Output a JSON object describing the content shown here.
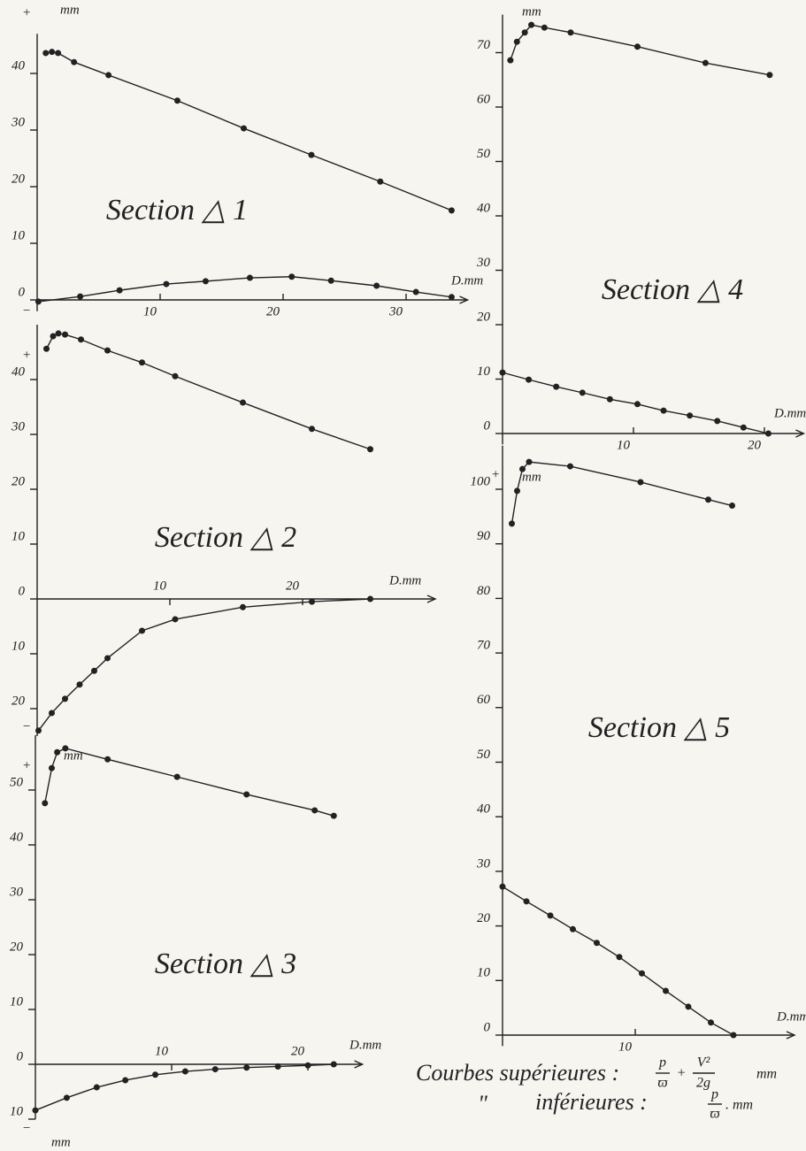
{
  "chart_data": [
    {
      "type": "line",
      "title": "Section △ 1",
      "x_label": "D.mm",
      "y_unit": "mm",
      "plus_sign": "+",
      "minus_sign": "−",
      "xlim": [
        0,
        35
      ],
      "ylim": [
        -2,
        47
      ],
      "xticks": [
        10,
        20,
        30
      ],
      "yticks": [
        0,
        10,
        20,
        30,
        40
      ],
      "series": [
        {
          "color": "#222",
          "x": [
            0.7,
            1.2,
            1.7,
            3.0,
            5.8,
            11.4,
            16.8,
            22.3,
            27.9,
            33.7
          ],
          "values": [
            43.6,
            43.8,
            43.6,
            42.0,
            39.7,
            35.2,
            30.3,
            25.6,
            20.9,
            15.8
          ]
        },
        {
          "color": "#222",
          "x": [
            0.1,
            3.5,
            6.7,
            10.5,
            13.7,
            17.3,
            20.7,
            23.9,
            27.6,
            30.8,
            33.7
          ],
          "values": [
            -0.3,
            0.6,
            1.7,
            2.8,
            3.3,
            3.9,
            4.1,
            3.4,
            2.5,
            1.4,
            0.5
          ]
        }
      ]
    },
    {
      "type": "line",
      "title": "Section △ 2",
      "x_label": "D.mm",
      "plus_sign": "+",
      "minus_sign": "−",
      "xlim": [
        0,
        30
      ],
      "ylim": [
        -25,
        50
      ],
      "xticks": [
        10,
        20
      ],
      "yticks": [
        {
          "value": -20,
          "label": "20"
        },
        {
          "value": -10,
          "label": "10"
        },
        0,
        10,
        20,
        30,
        40
      ],
      "series": [
        {
          "color": "#222",
          "x": [
            0.7,
            1.2,
            1.6,
            2.1,
            3.3,
            5.3,
            7.9,
            10.4,
            15.5,
            20.7,
            25.1
          ],
          "values": [
            45.6,
            47.9,
            48.4,
            48.2,
            47.3,
            45.3,
            43.1,
            40.6,
            35.8,
            31.0,
            27.3
          ]
        },
        {
          "color": "#222",
          "x": [
            0.1,
            1.1,
            2.1,
            3.2,
            4.3,
            5.3,
            7.9,
            10.4,
            15.5,
            20.7,
            25.1
          ],
          "values": [
            -24.0,
            -20.8,
            -18.2,
            -15.6,
            -13.1,
            -10.8,
            -5.8,
            -3.7,
            -1.5,
            -0.5,
            0
          ]
        }
      ]
    },
    {
      "type": "line",
      "title": "Section △ 3",
      "x_label": "D.mm",
      "y_unit": "mm",
      "y_unit_bottom": "mm",
      "plus_sign": "+",
      "minus_sign": "−",
      "xlim": [
        0,
        24
      ],
      "ylim": [
        -10,
        60
      ],
      "xticks": [
        10,
        20
      ],
      "yticks": [
        {
          "value": -10,
          "label": "10"
        },
        0,
        10,
        20,
        30,
        40,
        50
      ],
      "series": [
        {
          "color": "#222",
          "x": [
            0.7,
            1.2,
            1.6,
            2.2,
            5.3,
            10.4,
            15.5,
            20.5,
            21.9
          ],
          "values": [
            47.6,
            54.0,
            56.9,
            57.6,
            55.6,
            52.4,
            49.2,
            46.3,
            45.3
          ]
        },
        {
          "color": "#222",
          "x": [
            0,
            2.3,
            4.5,
            6.6,
            8.8,
            11.0,
            13.2,
            15.5,
            17.8,
            20.0,
            21.9
          ],
          "values": [
            -8.4,
            -6.1,
            -4.2,
            -2.9,
            -1.9,
            -1.3,
            -0.9,
            -0.6,
            -0.4,
            -0.2,
            0
          ]
        }
      ]
    },
    {
      "type": "line",
      "title": "Section △ 4",
      "x_label": "D.mm",
      "y_unit": "mm",
      "xlim": [
        0,
        23
      ],
      "ylim": [
        -2,
        77
      ],
      "xticks": [
        10,
        20
      ],
      "yticks": [
        0,
        10,
        20,
        30,
        40,
        50,
        60,
        70
      ],
      "series": [
        {
          "color": "#222",
          "x": [
            0.6,
            1.1,
            1.7,
            2.2,
            3.2,
            5.2,
            10.3,
            15.5,
            20.4
          ],
          "values": [
            68.6,
            72.0,
            73.7,
            75.1,
            74.6,
            73.7,
            71.1,
            68.1,
            65.9
          ]
        },
        {
          "color": "#222",
          "x": [
            0,
            2,
            4.1,
            6.1,
            8.2,
            10.3,
            12.3,
            14.3,
            16.4,
            18.4,
            20.3
          ],
          "values": [
            11.2,
            9.9,
            8.6,
            7.5,
            6.3,
            5.4,
            4.2,
            3.3,
            2.3,
            1.1,
            0
          ]
        }
      ]
    },
    {
      "type": "line",
      "title": "Section △ 5",
      "x_label": "D.mm",
      "y_unit": "mm",
      "plus_sign": "+",
      "xlim": [
        0,
        22
      ],
      "ylim": [
        -2,
        108
      ],
      "xticks": [
        10
      ],
      "yticks": [
        0,
        10,
        20,
        30,
        40,
        50,
        60,
        70,
        80,
        90,
        100
      ],
      "series": [
        {
          "color": "#222",
          "x": [
            0.7,
            1.1,
            1.5,
            2.0,
            5.1,
            10.4,
            15.5,
            17.3
          ],
          "values": [
            93.7,
            99.7,
            103.7,
            105.0,
            104.2,
            101.3,
            98.1,
            97.0
          ]
        },
        {
          "color": "#222",
          "x": [
            0,
            1.8,
            3.6,
            5.3,
            7.1,
            8.8,
            10.5,
            12.3,
            14.0,
            15.7,
            17.4
          ],
          "values": [
            27.2,
            24.5,
            21.9,
            19.4,
            16.9,
            14.3,
            11.3,
            8.1,
            5.2,
            2.3,
            0
          ]
        }
      ]
    }
  ],
  "note": {
    "upper_label": "Courbes supérieures :",
    "upper_num1": "p",
    "upper_den1": "ϖ",
    "plus": "+",
    "upper_num2": "V²",
    "upper_den2": "2g",
    "upper_unit": "mm",
    "ditto": "\"",
    "lower_label": "inférieures :",
    "lower_num": "p",
    "lower_den": "ϖ",
    "lower_unit": ". mm"
  }
}
